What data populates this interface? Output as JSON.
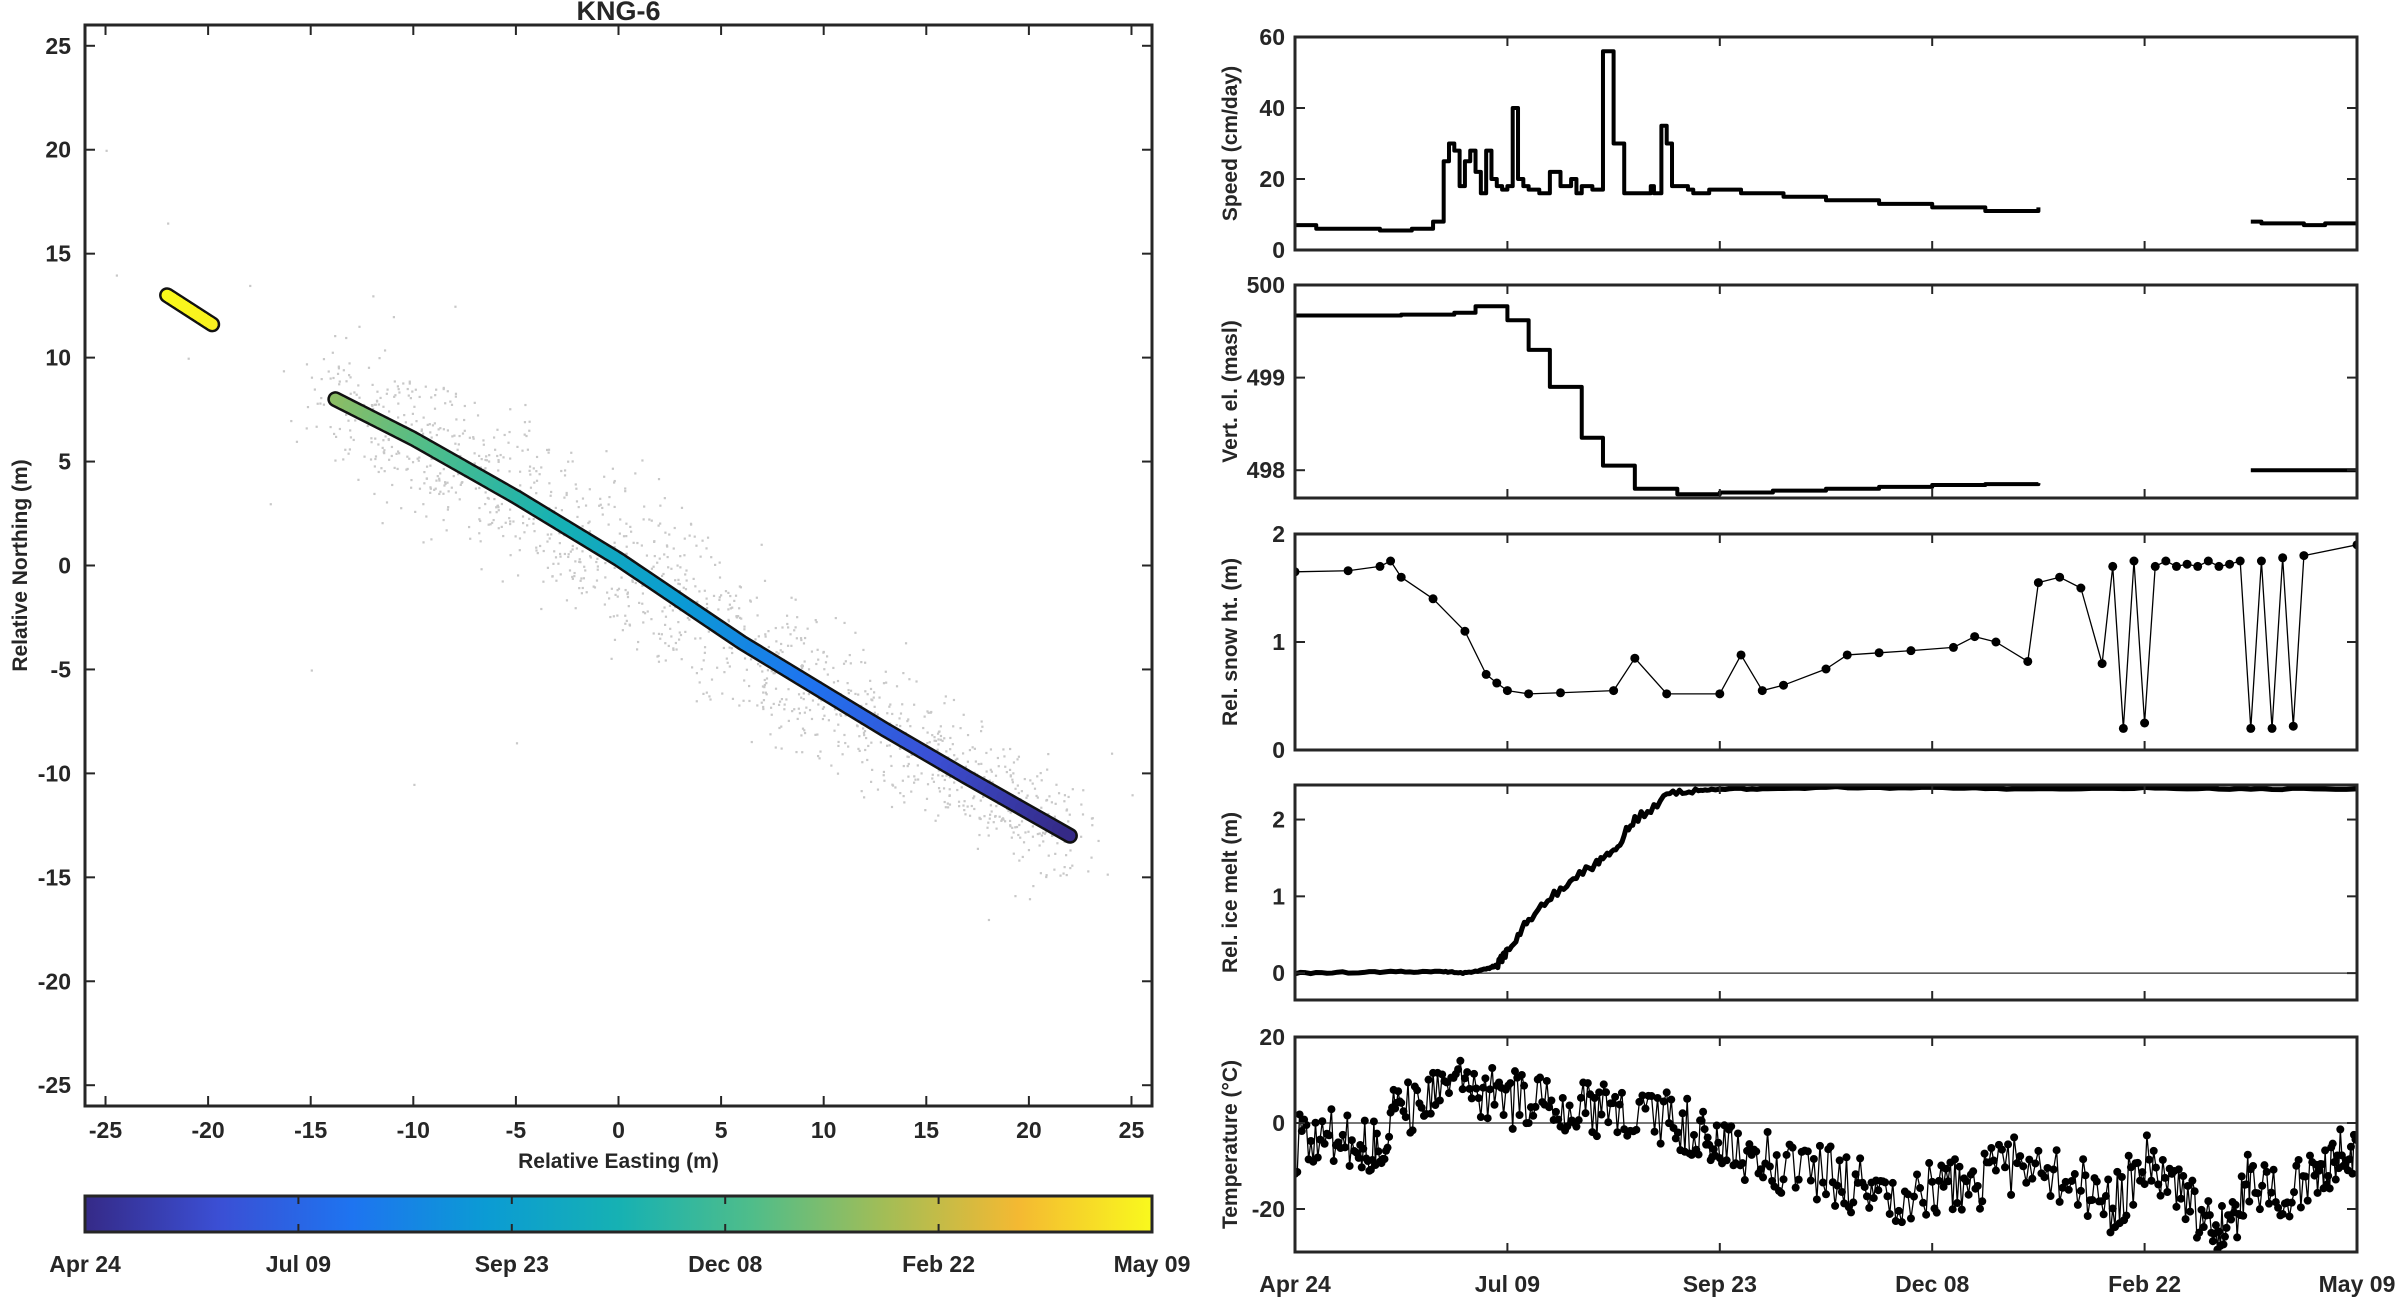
{
  "figure": {
    "title": "KNG-6",
    "background": "#ffffff"
  },
  "chart_data": [
    {
      "id": "map",
      "type": "scatter",
      "title": "KNG-6",
      "xlabel": "Relative Easting (m)",
      "ylabel": "Relative Northing (m)",
      "xlim": [
        -26,
        26
      ],
      "ylim": [
        -26,
        26
      ],
      "xticks": [
        -25,
        -20,
        -15,
        -10,
        -5,
        0,
        5,
        10,
        15,
        20,
        25
      ],
      "yticks": [
        -25,
        -20,
        -15,
        -10,
        -5,
        0,
        5,
        10,
        15,
        20,
        25
      ],
      "grid": false,
      "raw_fixes_color": "#c8c8c8",
      "track_segments": [
        {
          "name": "",
          "x": [
            -13.8,
            -10,
            -5,
            0,
            6,
            10,
            13,
            17,
            22
          ],
          "y": [
            8.0,
            6.1,
            3.3,
            0.3,
            -3.7,
            -6.1,
            -7.9,
            -10.2,
            -13.0
          ],
          "time_start": 0.0,
          "time_end": 0.72
        },
        {
          "name": "",
          "x": [
            -22.0,
            -19.8
          ],
          "y": [
            13.0,
            11.6
          ],
          "time_start": 0.985,
          "time_end": 1.0
        }
      ],
      "colorbar": {
        "colormap": "parula",
        "colors": [
          "#352a87",
          "#3b4fd4",
          "#1e74f0",
          "#0b9bd4",
          "#16b1b3",
          "#4fbd8a",
          "#a3bd56",
          "#f4b932",
          "#f9f91d"
        ],
        "tick_labels": [
          "Apr 24",
          "Jul 09",
          "Sep 23",
          "Dec 08",
          "Feb 22",
          "May 09"
        ],
        "tick_fractions": [
          0.0,
          0.2,
          0.4,
          0.6,
          0.8,
          1.0
        ]
      }
    },
    {
      "id": "speed",
      "type": "line",
      "ylabel": "Speed (cm/day)",
      "ylim": [
        0,
        60
      ],
      "yticks": [
        0,
        20,
        40,
        60
      ],
      "x_tick_labels": [],
      "series": [
        {
          "name": "",
          "x": [
            0.0,
            0.02,
            0.05,
            0.08,
            0.11,
            0.13,
            0.14,
            0.145,
            0.15,
            0.155,
            0.16,
            0.165,
            0.17,
            0.175,
            0.18,
            0.185,
            0.19,
            0.195,
            0.2,
            0.205,
            0.21,
            0.215,
            0.22,
            0.23,
            0.24,
            0.25,
            0.26,
            0.265,
            0.27,
            0.28,
            0.29,
            0.3,
            0.31,
            0.335,
            0.338,
            0.345,
            0.35,
            0.355,
            0.37,
            0.375,
            0.39,
            0.42,
            0.46,
            0.5,
            0.55,
            0.6,
            0.65,
            0.7
          ],
          "y": [
            7,
            6,
            6,
            5.5,
            6,
            8,
            25,
            30,
            28,
            18,
            25,
            28,
            22,
            16,
            28,
            20,
            18,
            17,
            18,
            40,
            20,
            18,
            17,
            16,
            22,
            18,
            20,
            16,
            18,
            17,
            56,
            30,
            16,
            18,
            16,
            35,
            30,
            18,
            17,
            16,
            17,
            16,
            15,
            14,
            13,
            12,
            11,
            12
          ]
        },
        {
          "name": "",
          "x": [
            0.9,
            0.91,
            0.93,
            0.95,
            0.97,
            1.0
          ],
          "y": [
            8,
            7.5,
            7.5,
            7,
            7.5,
            7
          ]
        }
      ]
    },
    {
      "id": "elevation",
      "type": "line",
      "ylabel": "Vert. el. (masl)",
      "ylim": [
        497.7,
        500.0
      ],
      "yticks": [
        498,
        499,
        500
      ],
      "x_tick_labels": [],
      "series": [
        {
          "name": "",
          "x": [
            0.0,
            0.05,
            0.1,
            0.15,
            0.17,
            0.2,
            0.22,
            0.24,
            0.27,
            0.29,
            0.32,
            0.36,
            0.4,
            0.45,
            0.5,
            0.55,
            0.6,
            0.65,
            0.7
          ],
          "y": [
            499.67,
            499.67,
            499.68,
            499.7,
            499.77,
            499.62,
            499.3,
            498.9,
            498.35,
            498.05,
            497.8,
            497.74,
            497.76,
            497.78,
            497.8,
            497.82,
            497.84,
            497.85,
            497.86
          ]
        },
        {
          "name": "",
          "x": [
            0.9,
            0.95,
            1.0
          ],
          "y": [
            498.0,
            498.0,
            498.02
          ]
        }
      ]
    },
    {
      "id": "snow",
      "type": "line",
      "ylabel": "Rel. snow ht. (m)",
      "ylim": [
        0,
        2
      ],
      "yticks": [
        0,
        1,
        2
      ],
      "x_tick_labels": [],
      "series": [
        {
          "name": "",
          "x": [
            0.0,
            0.05,
            0.08,
            0.09,
            0.1,
            0.13,
            0.16,
            0.18,
            0.19,
            0.2,
            0.22,
            0.25,
            0.3,
            0.32,
            0.35,
            0.4,
            0.42,
            0.44,
            0.46,
            0.5,
            0.52,
            0.55,
            0.58,
            0.62,
            0.64,
            0.66,
            0.69,
            0.7,
            0.72,
            0.74,
            0.76,
            0.77,
            0.78,
            0.79,
            0.8,
            0.81,
            0.82,
            0.83,
            0.84,
            0.85,
            0.86,
            0.87,
            0.88,
            0.89,
            0.9,
            0.91,
            0.92,
            0.93,
            0.94,
            0.95,
            1.0
          ],
          "y": [
            1.65,
            1.66,
            1.7,
            1.75,
            1.6,
            1.4,
            1.1,
            0.7,
            0.62,
            0.55,
            0.52,
            0.53,
            0.55,
            0.85,
            0.52,
            0.52,
            0.88,
            0.55,
            0.6,
            0.75,
            0.88,
            0.9,
            0.92,
            0.95,
            1.05,
            1.0,
            0.82,
            1.55,
            1.6,
            1.5,
            0.8,
            1.7,
            0.2,
            1.75,
            0.25,
            1.7,
            1.75,
            1.7,
            1.72,
            1.7,
            1.75,
            1.7,
            1.72,
            1.75,
            0.2,
            1.75,
            0.2,
            1.78,
            0.22,
            1.8,
            1.9
          ]
        }
      ]
    },
    {
      "id": "melt",
      "type": "line",
      "ylabel": "Rel. ice melt (m)",
      "ylim": [
        -0.35,
        2.45
      ],
      "yticks": [
        0,
        1,
        2
      ],
      "zero_line": true,
      "x_tick_labels": [],
      "series": [
        {
          "name": "",
          "x": [
            0.0,
            0.05,
            0.1,
            0.14,
            0.16,
            0.18,
            0.19,
            0.2,
            0.22,
            0.25,
            0.28,
            0.3,
            0.32,
            0.35,
            0.38,
            0.4,
            0.45,
            0.5,
            0.6,
            0.7,
            0.8,
            0.9,
            1.0
          ],
          "y": [
            0.0,
            0.01,
            0.02,
            0.02,
            0.0,
            0.05,
            0.1,
            0.3,
            0.7,
            1.1,
            1.4,
            1.6,
            2.0,
            2.3,
            2.38,
            2.4,
            2.4,
            2.42,
            2.41,
            2.4,
            2.41,
            2.4,
            2.4
          ]
        }
      ]
    },
    {
      "id": "temperature",
      "type": "line",
      "ylabel": "Temperature (°C)",
      "ylim": [
        -30,
        20
      ],
      "yticks": [
        -20,
        0,
        20
      ],
      "zero_line": true,
      "x_tick_labels": [
        "Apr 24",
        "Jul 09",
        "Sep 23",
        "Dec 08",
        "Feb 22",
        "May 09"
      ],
      "x_tick_fractions": [
        0.0,
        0.2,
        0.4,
        0.6,
        0.8,
        1.0
      ],
      "series": [
        {
          "name": "",
          "x": [
            0.0,
            0.03,
            0.06,
            0.08,
            0.1,
            0.13,
            0.16,
            0.19,
            0.22,
            0.25,
            0.28,
            0.31,
            0.35,
            0.38,
            0.4,
            0.43,
            0.46,
            0.5,
            0.53,
            0.56,
            0.6,
            0.63,
            0.66,
            0.7,
            0.74,
            0.77,
            0.8,
            0.83,
            0.86,
            0.88,
            0.9,
            0.93,
            0.96,
            0.98,
            1.0
          ],
          "y": [
            -5,
            -3,
            -6,
            -4,
            4,
            6,
            8,
            6,
            5,
            4,
            3,
            2,
            2,
            -2,
            -5,
            -8,
            -10,
            -12,
            -15,
            -18,
            -16,
            -14,
            -12,
            -8,
            -15,
            -20,
            -8,
            -16,
            -22,
            -25,
            -12,
            -18,
            -10,
            -8,
            -4
          ]
        }
      ]
    }
  ]
}
